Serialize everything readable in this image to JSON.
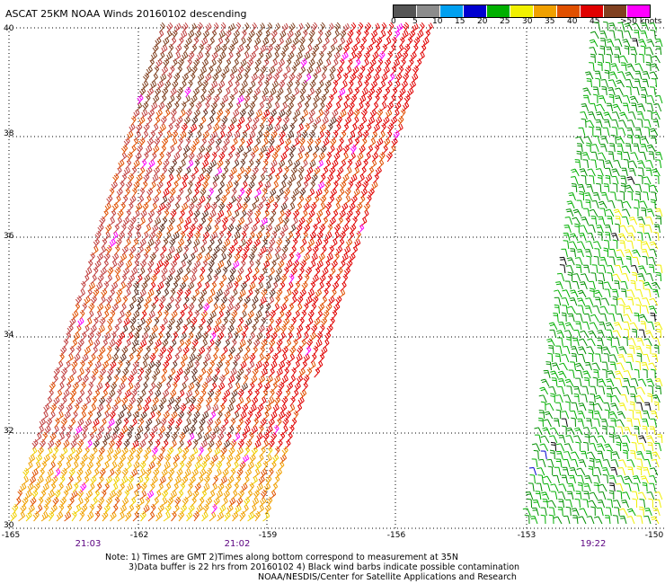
{
  "title": "ASCAT 25KM NOAA Winds 20160102 descending",
  "legend": {
    "labels": [
      "0",
      "5",
      "10",
      "15",
      "20",
      "25",
      "30",
      "35",
      "40",
      "45",
      ">50 knots"
    ],
    "colors": [
      "#555555",
      "#8c8c8c",
      "#00a0f0",
      "#0000d0",
      "#00b000",
      "#f0f000",
      "#f0a000",
      "#e05000",
      "#e00000",
      "#804020",
      "#ff00ff",
      "#500090"
    ]
  },
  "latitudes": [
    "40",
    "38",
    "36",
    "34",
    "32",
    "30"
  ],
  "longitudes": [
    "-165",
    "-162",
    "-159",
    "-156",
    "-153",
    "-150"
  ],
  "pass_times": [
    "21:03",
    "21:02",
    "19:22"
  ],
  "notes": {
    "line1": "Note: 1) Times are GMT 2)Times along bottom correspond to measurement at 35N",
    "line2": "3)Data buffer is 22 hrs from 20160102 4) Black wind barbs indicate possible contamination",
    "line3": "NOAA/NESDIS/Center for Satellite Applications and Research"
  },
  "swaths": [
    {
      "name": "west",
      "palette": [
        "#f0a000",
        "#e05000",
        "#e00000",
        "#c04040",
        "#804020",
        "#603020",
        "#ff00ff"
      ]
    },
    {
      "name": "east",
      "palette": [
        "#00b000",
        "#009000",
        "#40c000",
        "#f0f000",
        "#000000",
        "#0000d0"
      ]
    }
  ]
}
